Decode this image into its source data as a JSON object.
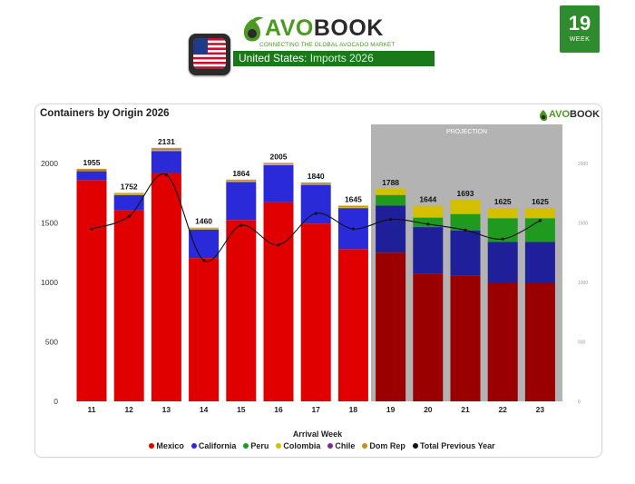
{
  "header": {
    "week_number": "19",
    "week_label": "WEEK",
    "brand_prefix": "AVO",
    "brand_suffix": "BOOK",
    "tagline": "CONNECTING THE GLOBAL AVOCADO MARKET",
    "country": "United States",
    "subtitle": ": Imports 2026",
    "small_brand_prefix": "AVO",
    "small_brand_suffix": "BOOK"
  },
  "colors": {
    "brand_green": "#2e8b2e",
    "mexico": "#e00000",
    "mexico_projection": "#9b0000",
    "california": "#2a2ad8",
    "california_projection": "#1f1f9a",
    "peru": "#1f9a1f",
    "colombia": "#d4c000",
    "chile": "#7a2a9a",
    "dom_rep": "#d08a20",
    "projection_bg": "#b3b3b3"
  },
  "chart_data": {
    "type": "bar",
    "title": "Containers by Origin 2026",
    "xlabel": "Arrival Week",
    "ylabel": "",
    "categories": [
      "11",
      "12",
      "13",
      "14",
      "15",
      "16",
      "17",
      "18",
      "19",
      "20",
      "21",
      "22",
      "23"
    ],
    "ylim": [
      0,
      2200
    ],
    "yticks": [
      0,
      500,
      1000,
      1500,
      2000
    ],
    "projection_label": "PROJECTION",
    "projection_categories": [
      "19",
      "20",
      "21",
      "22",
      "23"
    ],
    "totals": [
      1955,
      1752,
      2131,
      1460,
      1864,
      2005,
      1840,
      1645,
      1788,
      1644,
      1693,
      1625,
      1625
    ],
    "series": [
      {
        "name": "Mexico",
        "values": [
          1860,
          1610,
          1920,
          1205,
          1525,
          1675,
          1495,
          1280,
          1250,
          1075,
          1055,
          1000,
          1000
        ]
      },
      {
        "name": "California",
        "values": [
          75,
          125,
          185,
          240,
          320,
          310,
          325,
          345,
          395,
          390,
          380,
          340,
          340
        ]
      },
      {
        "name": "Peru",
        "values": [
          0,
          0,
          0,
          0,
          0,
          0,
          0,
          0,
          90,
          80,
          140,
          200,
          200
        ]
      },
      {
        "name": "Colombia",
        "values": [
          8,
          10,
          14,
          10,
          10,
          10,
          10,
          10,
          53,
          99,
          118,
          85,
          85
        ]
      },
      {
        "name": "Chile",
        "values": [
          4,
          2,
          4,
          0,
          2,
          2,
          2,
          2,
          0,
          0,
          0,
          0,
          0
        ]
      },
      {
        "name": "Dom Rep",
        "values": [
          8,
          5,
          8,
          5,
          7,
          8,
          8,
          8,
          0,
          0,
          0,
          0,
          0
        ]
      },
      {
        "name": "Total Previous Year",
        "type": "line",
        "values": [
          1450,
          1555,
          1905,
          1185,
          1480,
          1315,
          1580,
          1450,
          1530,
          1490,
          1440,
          1365,
          1520
        ]
      }
    ],
    "legend_position": "bottom"
  },
  "legend": [
    {
      "label": "Mexico",
      "color": "#e00000"
    },
    {
      "label": "California",
      "color": "#2a2ad8"
    },
    {
      "label": "Peru",
      "color": "#1f9a1f"
    },
    {
      "label": "Colombia",
      "color": "#d4c000"
    },
    {
      "label": "Chile",
      "color": "#7a2a9a"
    },
    {
      "label": "Dom Rep",
      "color": "#d08a20"
    },
    {
      "label": "Total Previous Year",
      "color": "#111111"
    }
  ]
}
